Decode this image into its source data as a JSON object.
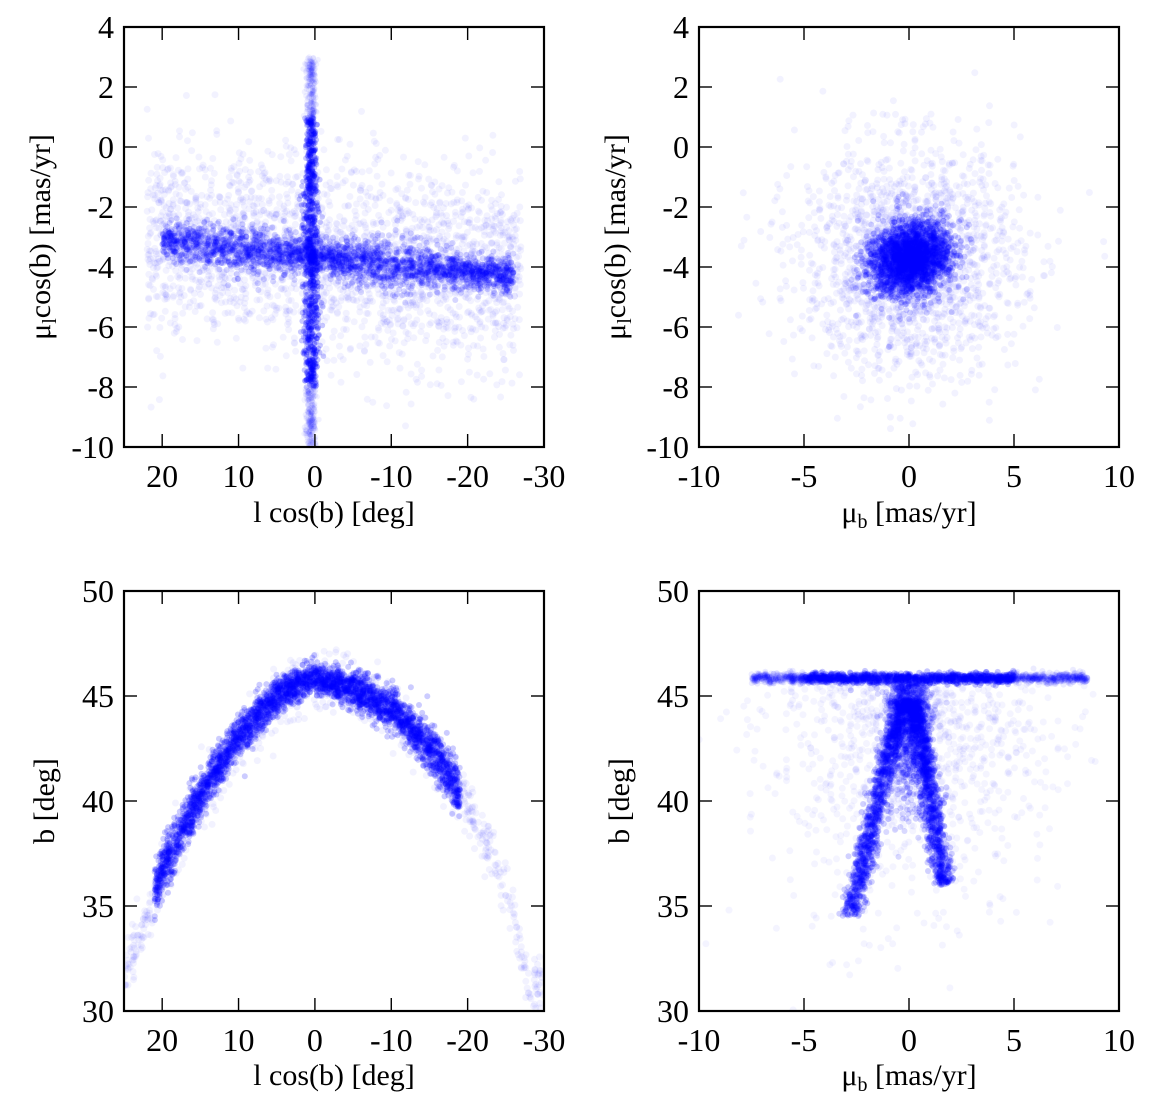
{
  "figure": {
    "background": "#ffffff",
    "point_color": "#0000ff"
  },
  "chart_data": [
    {
      "id": "p1",
      "type": "scatter",
      "title": "",
      "xlabel": "l cos(b) [deg]",
      "ylabel_parts": [
        "μ",
        "l",
        "cos(b) [mas/yr]"
      ],
      "xlim": [
        25,
        -30
      ],
      "ylim": [
        -10,
        4
      ],
      "xticks": [
        20,
        10,
        0,
        -10,
        -20,
        -30
      ],
      "xtick_labels": [
        "20",
        "10",
        "0",
        "-10",
        "-20",
        "-30"
      ],
      "yticks": [
        -10,
        -8,
        -6,
        -4,
        -2,
        0,
        2,
        4
      ],
      "ytick_labels": [
        "-10",
        "-8",
        "-6",
        "-4",
        "-2",
        "0",
        "2",
        "4"
      ],
      "description": "Horizontal band: mean proper motion from about -3.1 at l cos(b)=20 to -4.2 at -20; vertical spike at l cos(b) near 0.5 spanning about -10 to 3",
      "series": [
        {
          "name": "band",
          "x": [
            20,
            15,
            10,
            5,
            0,
            -5,
            -10,
            -15,
            -20,
            -25
          ],
          "y": [
            -3.1,
            -3.25,
            -3.4,
            -3.55,
            -3.65,
            -3.8,
            -3.95,
            -4.05,
            -4.15,
            -4.25
          ]
        },
        {
          "name": "spike",
          "x": [
            0.5,
            0.5,
            0.5,
            0.5,
            0.5,
            0.5,
            0.5,
            0.5
          ],
          "y": [
            3,
            2,
            0,
            -2,
            -4,
            -6,
            -8,
            -10
          ]
        }
      ]
    },
    {
      "id": "p2",
      "type": "scatter",
      "title": "",
      "xlabel_parts": [
        "μ",
        "b",
        " [mas/yr]"
      ],
      "ylabel_parts": [
        "μ",
        "l",
        "cos(b) [mas/yr]"
      ],
      "xlim": [
        -10,
        10
      ],
      "ylim": [
        -10,
        4
      ],
      "xticks": [
        -10,
        -5,
        0,
        5,
        10
      ],
      "xtick_labels": [
        "-10",
        "-5",
        "0",
        "5",
        "10"
      ],
      "yticks": [
        -10,
        -8,
        -6,
        -4,
        -2,
        0,
        2,
        4
      ],
      "ytick_labels": [
        "-10",
        "-8",
        "-6",
        "-4",
        "-2",
        "0",
        "2",
        "4"
      ],
      "description": "Roughly elliptical cloud centred near (0, -3.7) with dense core extending to about (1, -3.2)",
      "series": [
        {
          "name": "cloud",
          "x": [
            -1.5,
            -1,
            -0.5,
            0,
            0.5,
            1,
            1.5
          ],
          "y": [
            -4.2,
            -4.1,
            -3.9,
            -3.7,
            -3.5,
            -3.3,
            -3.3
          ]
        }
      ]
    },
    {
      "id": "p3",
      "type": "scatter",
      "title": "",
      "xlabel": "l cos(b) [deg]",
      "ylabel": "b [deg]",
      "xlim": [
        25,
        -30
      ],
      "ylim": [
        30,
        50
      ],
      "xticks": [
        20,
        10,
        0,
        -10,
        -20,
        -30
      ],
      "xtick_labels": [
        "20",
        "10",
        "0",
        "-10",
        "-20",
        "-30"
      ],
      "yticks": [
        30,
        35,
        40,
        45,
        50
      ],
      "ytick_labels": [
        "30",
        "35",
        "40",
        "45",
        "50"
      ],
      "description": "Arc (stream track) peaking at b about 46 near l cos(b)=0, falling to about 31 at l cos(b)=25 and -28",
      "series": [
        {
          "name": "arc",
          "x": [
            25,
            20,
            15,
            10,
            5,
            0,
            -5,
            -10,
            -15,
            -20,
            -25,
            -28
          ],
          "y": [
            32.0,
            36.6,
            40.3,
            43.1,
            45.0,
            46.0,
            45.6,
            44.6,
            42.8,
            40.1,
            36.3,
            31.5
          ]
        }
      ]
    },
    {
      "id": "p4",
      "type": "scatter",
      "title": "",
      "xlabel_parts": [
        "μ",
        "b",
        " [mas/yr]"
      ],
      "ylabel": "b [deg]",
      "xlim": [
        -10,
        10
      ],
      "ylim": [
        30,
        50
      ],
      "xticks": [
        -10,
        -5,
        0,
        5,
        10
      ],
      "xtick_labels": [
        "-10",
        "-5",
        "0",
        "5",
        "10"
      ],
      "yticks": [
        30,
        35,
        40,
        45,
        50
      ],
      "ytick_labels": [
        "30",
        "35",
        "40",
        "45",
        "50"
      ],
      "description": "Horizontal bar at b about 45.8 spanning mu_b from -7 to 8, with two legs descending to b about 35 at mu_b -2.7 and 36.5 at mu_b 1.6",
      "series": [
        {
          "name": "bar",
          "x": [
            -7,
            -4,
            -1,
            0,
            1,
            4,
            8
          ],
          "y": [
            45.8,
            45.8,
            45.85,
            45.9,
            45.85,
            45.8,
            45.8
          ]
        },
        {
          "name": "left-leg",
          "x": [
            -0.3,
            -1.0,
            -1.6,
            -2.2,
            -2.7
          ],
          "y": [
            44.5,
            42.0,
            39.5,
            37.0,
            35.0
          ]
        },
        {
          "name": "right-leg",
          "x": [
            0.3,
            0.7,
            1.1,
            1.4,
            1.6
          ],
          "y": [
            44.5,
            42.0,
            39.5,
            37.5,
            36.5
          ]
        }
      ]
    }
  ]
}
